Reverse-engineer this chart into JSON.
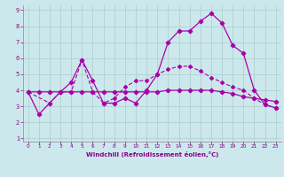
{
  "xlabel": "Windchill (Refroidissement éolien,°C)",
  "xlim": [
    -0.5,
    23.5
  ],
  "ylim": [
    0.8,
    9.3
  ],
  "xticks": [
    0,
    1,
    2,
    3,
    4,
    5,
    6,
    7,
    8,
    9,
    10,
    11,
    12,
    13,
    14,
    15,
    16,
    17,
    18,
    19,
    20,
    21,
    22,
    23
  ],
  "yticks": [
    1,
    2,
    3,
    4,
    5,
    6,
    7,
    8,
    9
  ],
  "background_color": "#cce8ec",
  "grid_color": "#aacccc",
  "line_color": "#aa00aa",
  "series1_x": [
    0,
    1,
    2,
    3,
    4,
    5,
    6,
    7,
    8,
    9,
    10,
    11,
    12,
    13,
    14,
    15,
    16,
    17,
    18,
    19,
    20,
    21,
    22,
    23
  ],
  "series1_y": [
    3.9,
    2.5,
    3.2,
    3.9,
    4.5,
    5.9,
    4.6,
    3.2,
    3.2,
    3.5,
    3.2,
    4.0,
    5.0,
    7.0,
    7.7,
    7.7,
    8.3,
    8.8,
    8.2,
    6.8,
    6.3,
    4.0,
    3.1,
    2.9
  ],
  "series2_x": [
    0,
    1,
    2,
    3,
    4,
    5,
    6,
    7,
    8,
    9,
    10,
    11,
    12,
    13,
    14,
    15,
    16,
    17,
    18,
    19,
    20,
    21,
    22,
    23
  ],
  "series2_y": [
    3.9,
    3.9,
    3.9,
    3.9,
    3.9,
    3.9,
    3.9,
    3.9,
    3.9,
    3.9,
    3.9,
    3.9,
    3.9,
    4.0,
    4.0,
    4.0,
    4.0,
    4.0,
    3.9,
    3.8,
    3.6,
    3.5,
    3.4,
    3.3
  ],
  "series3_x": [
    0,
    2,
    3,
    4,
    5,
    6,
    7,
    8,
    9,
    10,
    11,
    12,
    13,
    14,
    15,
    16,
    17,
    18,
    19,
    20,
    21,
    22,
    23
  ],
  "series3_y": [
    3.9,
    3.2,
    3.9,
    3.9,
    5.9,
    3.9,
    3.2,
    3.5,
    4.2,
    4.6,
    4.6,
    5.0,
    5.3,
    5.5,
    5.5,
    5.2,
    4.8,
    4.5,
    4.2,
    4.0,
    3.5,
    3.1,
    2.9
  ]
}
